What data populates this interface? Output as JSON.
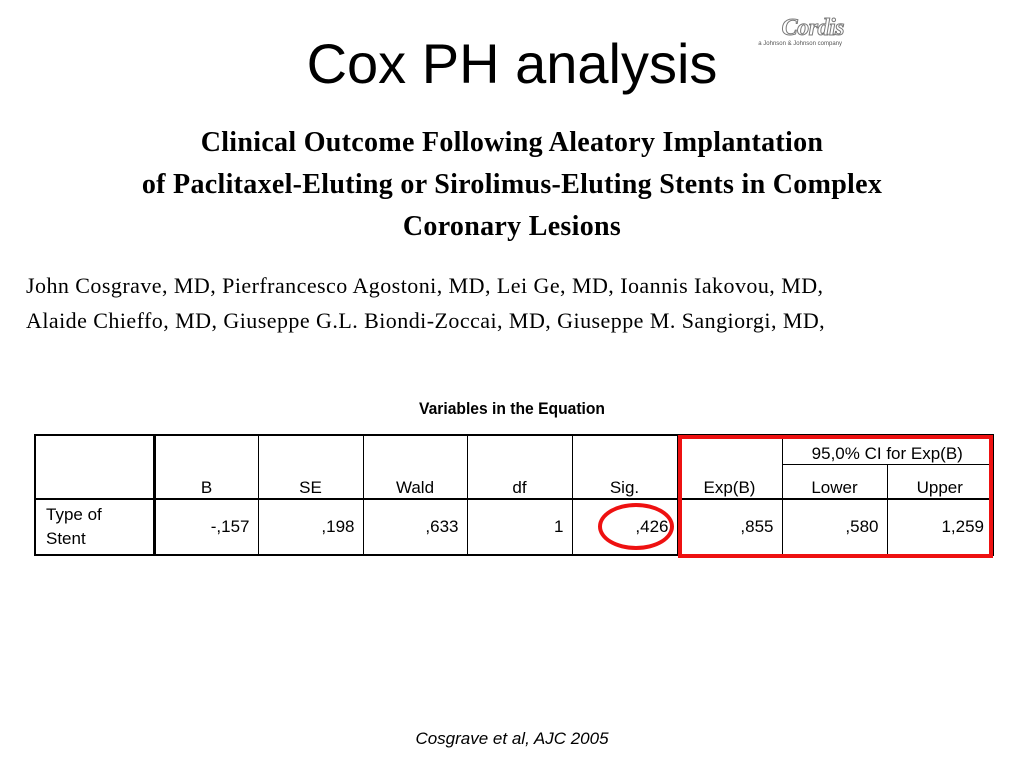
{
  "slide": {
    "title": "Cox PH analysis",
    "logo": {
      "brand": "Cordis",
      "tagline": "a Johnson & Johnson company"
    }
  },
  "paper": {
    "title_lines": [
      "Clinical Outcome Following Aleatory Implantation",
      "of Paclitaxel-Eluting or Sirolimus-Eluting Stents in Complex",
      "Coronary Lesions"
    ],
    "author_lines": [
      "John Cosgrave, MD, Pierfrancesco Agostoni, MD, Lei Ge, MD, Ioannis Iakovou, MD,",
      "Alaide Chieffo, MD, Giuseppe G.L. Biondi-Zoccai, MD, Giuseppe M. Sangiorgi, MD,"
    ]
  },
  "table": {
    "caption": "Variables in the Equation",
    "ci_group_header": "95,0% CI for Exp(B)",
    "headers": [
      "B",
      "SE",
      "Wald",
      "df",
      "Sig.",
      "Exp(B)",
      "Lower",
      "Upper"
    ],
    "rows": [
      {
        "label": "Type of Stent",
        "values": [
          "-,157",
          ",198",
          ",633",
          "1",
          ",426",
          ",855",
          ",580",
          "1,259"
        ]
      }
    ]
  },
  "annotations": {
    "highlight_color": "#ee1111"
  },
  "citation": "Cosgrave et al, AJC 2005"
}
